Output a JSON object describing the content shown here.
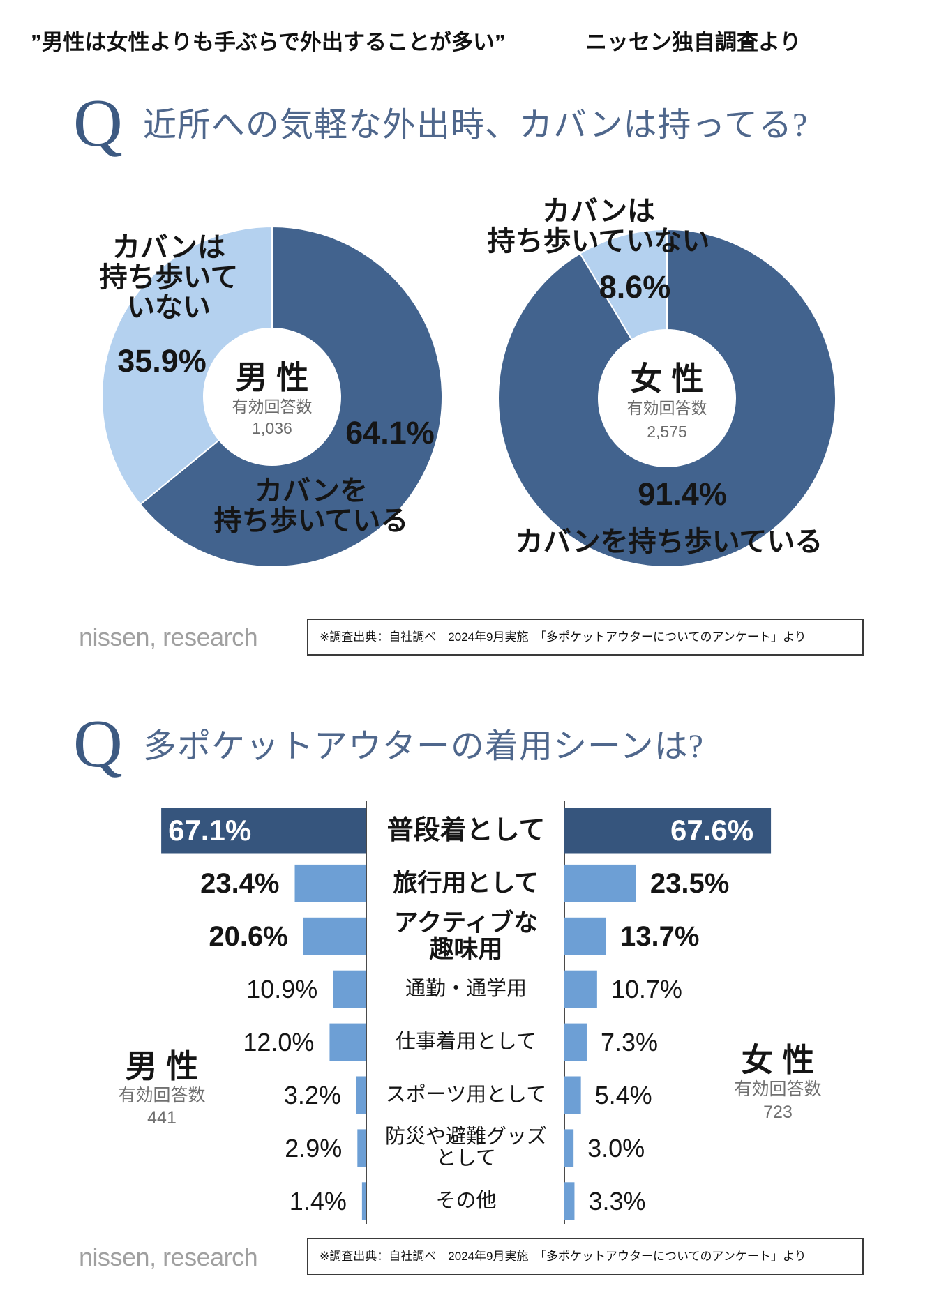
{
  "header": {
    "headline": "”男性は女性よりも手ぶらで外出することが多い”",
    "source_note": "ニッセン独自調査より"
  },
  "colors": {
    "q_mark": "#3d5a82",
    "title_text": "#4f678c",
    "bar_top": "#36557d",
    "bar_other": "#6d9fd5",
    "logo_gray": "#a0a0a0"
  },
  "section1": {
    "q_mark": "Q",
    "question": "近所への気軽な外出時、カバンは持ってる?"
  },
  "section2": {
    "q_mark": "Q",
    "question": "多ポケットアウターの着用シーンは?"
  },
  "footers": [
    {
      "logo": "nissen, research",
      "source": "※調査出典：自社調べ　2024年9月実施　「多ポケットアウターについてのアンケート」より"
    },
    {
      "logo": "nissen, research",
      "source": "※調査出典：自社調べ　2024年9月実施　「多ポケットアウターについてのアンケート」より"
    }
  ],
  "chart_data": [
    {
      "type": "pie",
      "donut": true,
      "unit": "%",
      "center_title": "男 性",
      "center_subtitle": "有効回答数",
      "center_n": "1,036",
      "slices": [
        {
          "label_lines": [
            "カバンを",
            "持ち歩いている"
          ],
          "value": 64.1,
          "color": "#42638e"
        },
        {
          "label_lines": [
            "カバンは",
            "持ち歩いて",
            "いない"
          ],
          "value": 35.9,
          "color": "#b4d1ef"
        }
      ]
    },
    {
      "type": "pie",
      "donut": true,
      "unit": "%",
      "center_title": "女 性",
      "center_subtitle": "有効回答数",
      "center_n": "2,575",
      "slices": [
        {
          "label_lines": [
            "カバンを持ち歩いている"
          ],
          "value": 91.4,
          "color": "#42638e"
        },
        {
          "label_lines": [
            "カバンは",
            "持ち歩いていない"
          ],
          "value": 8.6,
          "color": "#b4d1ef"
        }
      ]
    },
    {
      "type": "bar",
      "orientation": "horizontal",
      "layout": "back-to-back",
      "unit": "%",
      "categories": [
        [
          "普段着として"
        ],
        [
          "旅行用として"
        ],
        [
          "アクティブな",
          "趣味用"
        ],
        [
          "通勤・通学用"
        ],
        [
          "仕事着用として"
        ],
        [
          "スポーツ用として"
        ],
        [
          "防災や避難グッズ",
          "として"
        ],
        [
          "その他"
        ]
      ],
      "series": [
        {
          "name": "男 性",
          "side": "left",
          "sample_label": "有効回答数",
          "sample_n": "441",
          "values": [
            67.1,
            23.4,
            20.6,
            10.9,
            12.0,
            3.2,
            2.9,
            1.4
          ]
        },
        {
          "name": "女 性",
          "side": "right",
          "sample_label": "有効回答数",
          "sample_n": "723",
          "values": [
            67.6,
            23.5,
            13.7,
            10.7,
            7.3,
            5.4,
            3.0,
            3.3
          ]
        }
      ]
    }
  ]
}
